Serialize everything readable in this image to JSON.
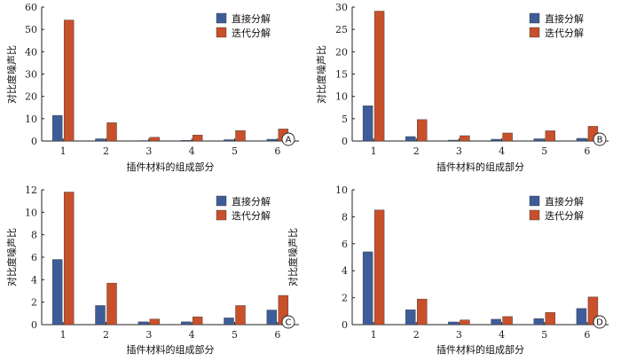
{
  "colors": {
    "series1": "#3e5d98",
    "series2": "#c8502b",
    "axis": "#222222"
  },
  "chart_data": [
    {
      "type": "bar",
      "tag": "A",
      "categories": [
        "1",
        "2",
        "3",
        "4",
        "5",
        "6"
      ],
      "series": [
        {
          "name": "直接分解",
          "values": [
            11.5,
            1.0,
            0.2,
            0.3,
            0.6,
            0.8
          ]
        },
        {
          "name": "迭代分解",
          "values": [
            54.2,
            8.2,
            1.7,
            2.7,
            4.7,
            5.4
          ]
        }
      ],
      "xlabel": "插件材料的组成部分",
      "ylabel": "对比度噪声比",
      "ylim": [
        0,
        60
      ],
      "yticks": [
        0,
        10,
        20,
        30,
        40,
        50,
        60
      ],
      "legend": "top-right",
      "grid": false
    },
    {
      "type": "bar",
      "tag": "B",
      "categories": [
        "1",
        "2",
        "3",
        "4",
        "5",
        "6"
      ],
      "series": [
        {
          "name": "直接分解",
          "values": [
            7.9,
            1.0,
            0.2,
            0.4,
            0.5,
            0.6
          ]
        },
        {
          "name": "迭代分解",
          "values": [
            29.1,
            4.8,
            1.2,
            1.8,
            2.3,
            3.3
          ]
        }
      ],
      "xlabel": "插件材料的组成部分",
      "ylabel": "对比度噪声比",
      "ylim": [
        0,
        30
      ],
      "yticks": [
        0,
        5,
        10,
        15,
        20,
        25,
        30
      ],
      "legend": "top-right",
      "grid": false
    },
    {
      "type": "bar",
      "tag": "C",
      "categories": [
        "1",
        "2",
        "3",
        "4",
        "5",
        "6"
      ],
      "series": [
        {
          "name": "直接分解",
          "values": [
            5.8,
            1.7,
            0.25,
            0.25,
            0.6,
            1.3
          ]
        },
        {
          "name": "迭代分解",
          "values": [
            11.8,
            3.7,
            0.5,
            0.7,
            1.7,
            2.6
          ]
        }
      ],
      "xlabel": "插件材料的组成部分",
      "ylabel": "对比度噪声比",
      "ylim": [
        0,
        12
      ],
      "yticks": [
        0,
        2,
        4,
        6,
        8,
        10,
        12
      ],
      "legend": "top-right",
      "grid": false
    },
    {
      "type": "bar",
      "tag": "D",
      "categories": [
        "1",
        "2",
        "3",
        "4",
        "5",
        "6"
      ],
      "series": [
        {
          "name": "直接分解",
          "values": [
            5.4,
            1.1,
            0.2,
            0.4,
            0.45,
            1.2
          ]
        },
        {
          "name": "迭代分解",
          "values": [
            8.5,
            1.9,
            0.35,
            0.6,
            0.9,
            2.05
          ]
        }
      ],
      "xlabel": "插件材料的组成部分",
      "ylabel": "对比度噪声比",
      "ylim": [
        0,
        10
      ],
      "yticks": [
        0,
        2,
        4,
        6,
        8,
        10
      ],
      "legend": "top-right",
      "grid": false
    }
  ]
}
